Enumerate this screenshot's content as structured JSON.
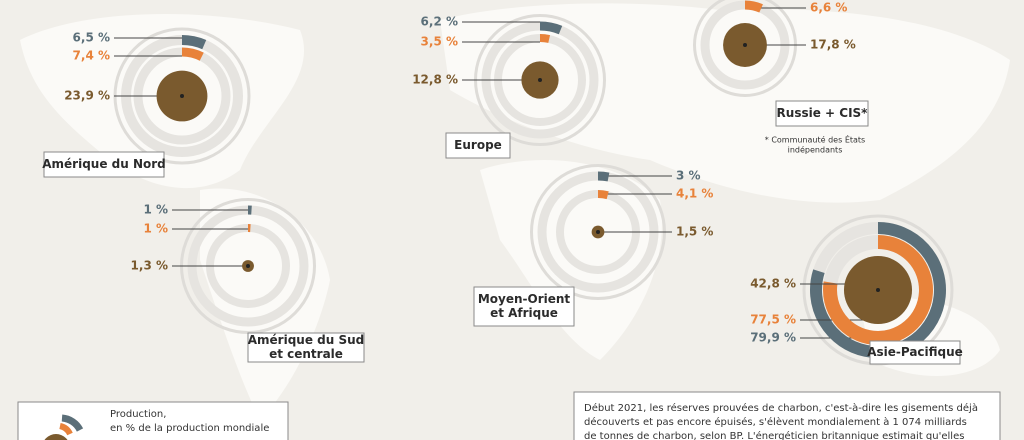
{
  "regions": [
    {
      "name_lines": [
        "Amérique du Nord"
      ],
      "rings": [
        {
          "value": 6.5,
          "label": "6,5 %",
          "color": "#5b6f79"
        },
        {
          "value": 7.4,
          "label": "7,4 %",
          "color": "#e8823a"
        },
        {
          "value": 23.9,
          "label": "23,9 %",
          "color": "#7a5a2e"
        }
      ]
    },
    {
      "name_lines": [
        "Europe"
      ],
      "rings": [
        {
          "value": 6.2,
          "label": "6,2 %",
          "color": "#5b6f79"
        },
        {
          "value": 3.5,
          "label": "3,5 %",
          "color": "#e8823a"
        },
        {
          "value": 12.8,
          "label": "12,8 %",
          "color": "#7a5a2e"
        }
      ]
    },
    {
      "name_lines": [
        "Russie + CIS*"
      ],
      "rings": [
        {
          "value": 6.6,
          "label": "6,6 %",
          "color": "#e8823a"
        },
        {
          "value": 17.8,
          "label": "17,8 %",
          "color": "#7a5a2e"
        }
      ]
    },
    {
      "name_lines": [
        "Amérique du Sud",
        "et centrale"
      ],
      "rings": [
        {
          "value": 1,
          "label": "1 %",
          "color": "#5b6f79"
        },
        {
          "value": 1,
          "label": "1 %",
          "color": "#e8823a"
        },
        {
          "value": 1.3,
          "label": "1,3 %",
          "color": "#7a5a2e"
        }
      ]
    },
    {
      "name_lines": [
        "Moyen-Orient",
        "et Afrique"
      ],
      "rings": [
        {
          "value": 3,
          "label": "3 %",
          "color": "#5b6f79"
        },
        {
          "value": 4.1,
          "label": "4,1 %",
          "color": "#e8823a"
        },
        {
          "value": 1.5,
          "label": "1,5 %",
          "color": "#7a5a2e"
        }
      ]
    },
    {
      "name_lines": [
        "Asie-Pacifique"
      ],
      "rings": [
        {
          "value": 79.9,
          "label": "79,9 %",
          "color": "#5b6f79"
        },
        {
          "value": 77.5,
          "label": "77,5 %",
          "color": "#e8823a"
        },
        {
          "value": 42.8,
          "label": "42,8 %",
          "color": "#7a5a2e"
        }
      ]
    }
  ],
  "note_lines": [
    "* Communauté des États",
    "indépendants"
  ],
  "legend_lines": [
    "Production,",
    "en % de la production mondiale"
  ],
  "text_lines": [
    "Début 2021, les réserves prouvées de charbon, c'est-à-dire les gisements déjà",
    "découverts et pas encore épuisés, s'élèvent mondialement à 1 074 milliards",
    "de tonnes de charbon, selon BP. L'énergéticien britannique estimait qu'elles"
  ]
}
